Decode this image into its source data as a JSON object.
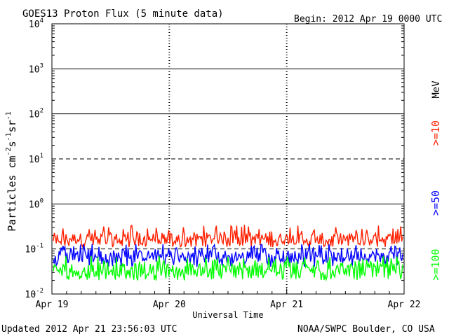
{
  "chart_data": {
    "type": "line",
    "title": "GOES13 Proton Flux (5 minute data)",
    "begin_label": "Begin: 2012 Apr 19 0000 UTC",
    "xlabel": "Universal Time",
    "ylabel_parts": [
      "Particles cm",
      "-2",
      "s",
      "-1",
      "sr",
      "-1"
    ],
    "yscale": "log",
    "ylim": [
      0.01,
      10000
    ],
    "y_ticks": [
      {
        "base": "10",
        "exp": "4",
        "value": 10000
      },
      {
        "base": "10",
        "exp": "3",
        "value": 1000
      },
      {
        "base": "10",
        "exp": "2",
        "value": 100
      },
      {
        "base": "10",
        "exp": "1",
        "value": 10
      },
      {
        "base": "10",
        "exp": "0",
        "value": 1
      },
      {
        "base": "10",
        "exp": "-1",
        "value": 0.1
      },
      {
        "base": "10",
        "exp": "-2",
        "value": 0.01
      }
    ],
    "x_ticks": [
      "Apr 19",
      "Apr 20",
      "Apr 21",
      "Apr 22"
    ],
    "xlim": [
      "2012-04-19",
      "2012-04-22"
    ],
    "right_unit_label": "MeV",
    "series": [
      {
        "name": ">=10",
        "color": "#ff2000",
        "level_approx": 0.17,
        "range_approx": [
          0.11,
          0.35
        ]
      },
      {
        "name": ">=50",
        "color": "#0000ff",
        "level_approx": 0.07,
        "range_approx": [
          0.04,
          0.13
        ]
      },
      {
        "name": ">=100",
        "color": "#00ff00",
        "level_approx": 0.035,
        "range_approx": [
          0.02,
          0.07
        ]
      }
    ],
    "reference_lines": [
      {
        "value": 10,
        "style": "dashed"
      },
      {
        "value": 0.1,
        "style": "dashed"
      }
    ],
    "grid": true
  },
  "footer": {
    "updated": "Updated 2012 Apr 21 23:56:03 UTC",
    "source": "NOAA/SWPC Boulder, CO USA"
  }
}
